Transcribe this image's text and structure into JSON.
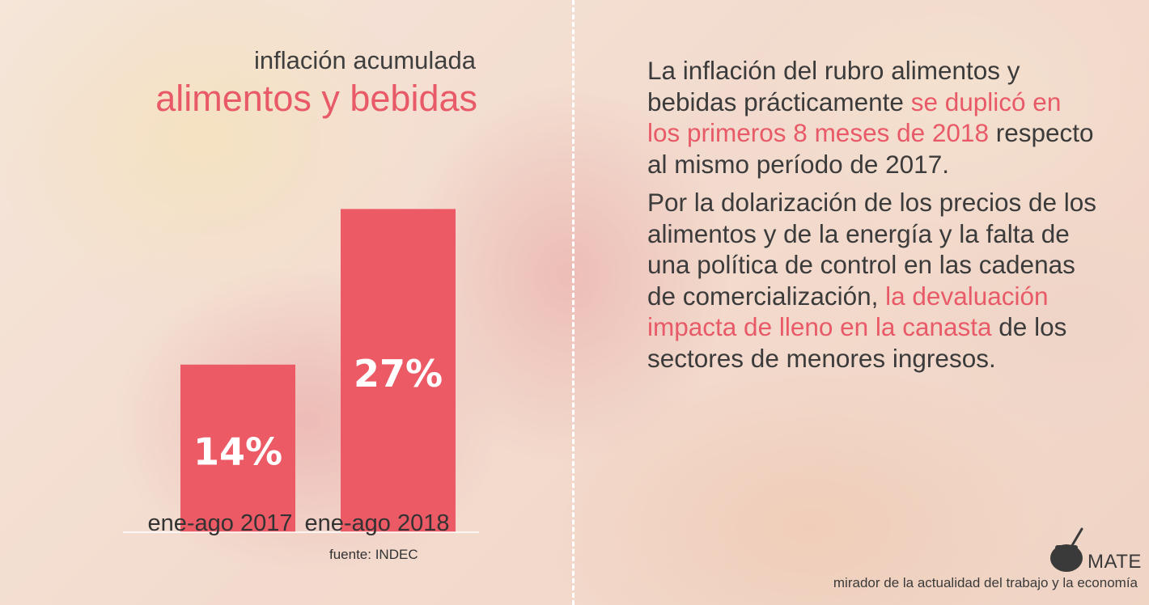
{
  "colors": {
    "accent": "#e85a67",
    "text": "#3b3b3b",
    "divider": "#ffffff"
  },
  "title": {
    "line1": "inflación acumulada",
    "line2": "alimentos y bebidas"
  },
  "chart_data": {
    "type": "bar",
    "title": "inflación acumulada alimentos y bebidas",
    "categories": [
      "ene-ago 2017",
      "ene-ago 2018"
    ],
    "values": [
      14,
      27
    ],
    "value_labels": [
      "14%",
      "27%"
    ],
    "unit": "%",
    "ylim": [
      0,
      30
    ],
    "grid": false,
    "legend": "none",
    "source": "fuente: INDEC",
    "bar_color": "#ec5a66"
  },
  "text": {
    "p1": {
      "a": "La inflación del rubro alimentos y bebidas prácticamente ",
      "b": "se duplicó en los primeros 8 meses de 2018",
      "c": " respecto al mismo período de 2017."
    },
    "p2": {
      "a": "Por la dolarización de los precios de los alimentos y de la energía y la falta de una política de control en las cadenas de comercialización, ",
      "b": "la devaluación impacta de lleno en la canasta",
      "c": " de los sectores de menores ingresos."
    }
  },
  "brand": {
    "name": "MATE",
    "tagline": "mirador de la actualidad del trabajo y la economía",
    "logo_icon": "mate-gourd-icon"
  }
}
